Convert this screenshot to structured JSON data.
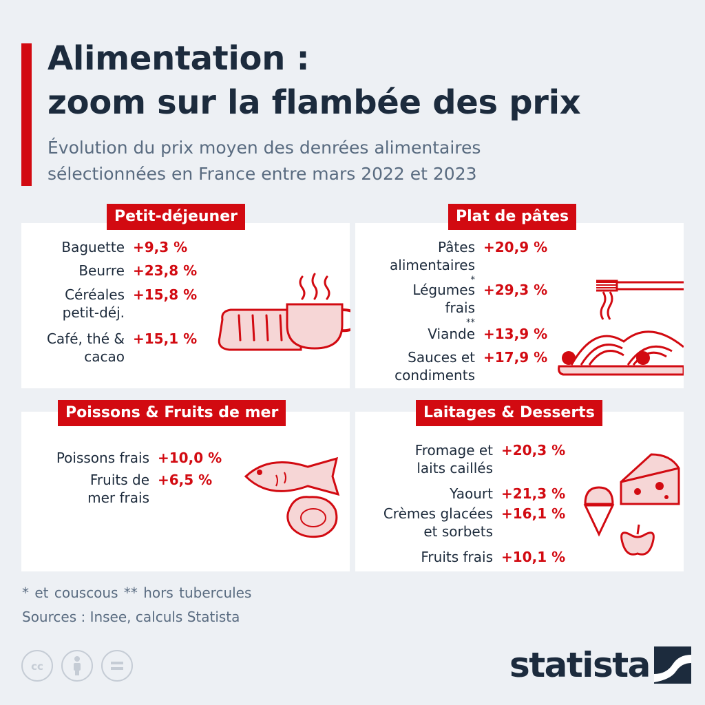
{
  "header": {
    "title_line1": "Alimentation :",
    "title_line2": "zoom sur la flambée des prix",
    "subtitle_line1": "Évolution du prix moyen des denrées alimentaires",
    "subtitle_line2": "sélectionnées en France entre mars 2022 et 2023"
  },
  "colors": {
    "accent": "#d20a11",
    "icon_fill": "#f6d6d6",
    "background": "#edf0f4",
    "text": "#1c2b3d",
    "muted": "#596b80"
  },
  "chart_data": {
    "type": "table",
    "groups": [
      {
        "name": "Petit-déjeuner",
        "icons": [
          "bread-icon",
          "coffee-cup-icon"
        ],
        "items": [
          {
            "label": [
              "Baguette"
            ],
            "value": "+9,3 %"
          },
          {
            "label": [
              "Beurre"
            ],
            "value": "+23,8 %"
          },
          {
            "label": [
              "Céréales",
              "petit-déj."
            ],
            "value": "+15,8 %"
          },
          {
            "label": [
              "Café, thé &",
              "cacao"
            ],
            "value": "+15,1 %"
          }
        ]
      },
      {
        "name": "Plat de pâtes",
        "icons": [
          "fork-icon",
          "pasta-plate-icon",
          "tomato-icon"
        ],
        "items": [
          {
            "label": [
              "Pâtes",
              "alimentaires"
            ],
            "marker": "*",
            "value": "+20,9 %"
          },
          {
            "label": [
              "Légumes",
              "frais"
            ],
            "marker": "**",
            "value": "+29,3 %"
          },
          {
            "label": [
              "Viande"
            ],
            "value": "+13,9 %"
          },
          {
            "label": [
              "Sauces et",
              "condiments"
            ],
            "value": "+17,9 %"
          }
        ]
      },
      {
        "name": "Poissons & Fruits de mer",
        "icons": [
          "fish-icon",
          "oyster-icon"
        ],
        "items": [
          {
            "label": [
              "Poissons frais"
            ],
            "value": "+10,0 %"
          },
          {
            "label": [
              "Fruits de",
              "mer frais"
            ],
            "value": "+6,5 %"
          }
        ]
      },
      {
        "name": "Laitages & Desserts",
        "icons": [
          "cheese-icon",
          "ice-cream-icon",
          "apple-icon"
        ],
        "items": [
          {
            "label": [
              "Fromage et",
              "laits caillés"
            ],
            "value": "+20,3 %"
          },
          {
            "label": [
              "Yaourt"
            ],
            "value": "+21,3 %"
          },
          {
            "label": [
              "Crèmes glacées",
              "et sorbets"
            ],
            "value": "+16,1 %"
          },
          {
            "label": [
              "Fruits frais"
            ],
            "value": "+10,1 %"
          }
        ]
      }
    ]
  },
  "footer": {
    "footnote": "* et couscous    ** hors tubercules",
    "sources": "Sources : Insee, calculs Statista",
    "license_icons": [
      "cc-icon",
      "attribution-icon",
      "no-derivatives-icon"
    ],
    "brand": "statista",
    "brand_icon": "statista-logo-icon"
  }
}
